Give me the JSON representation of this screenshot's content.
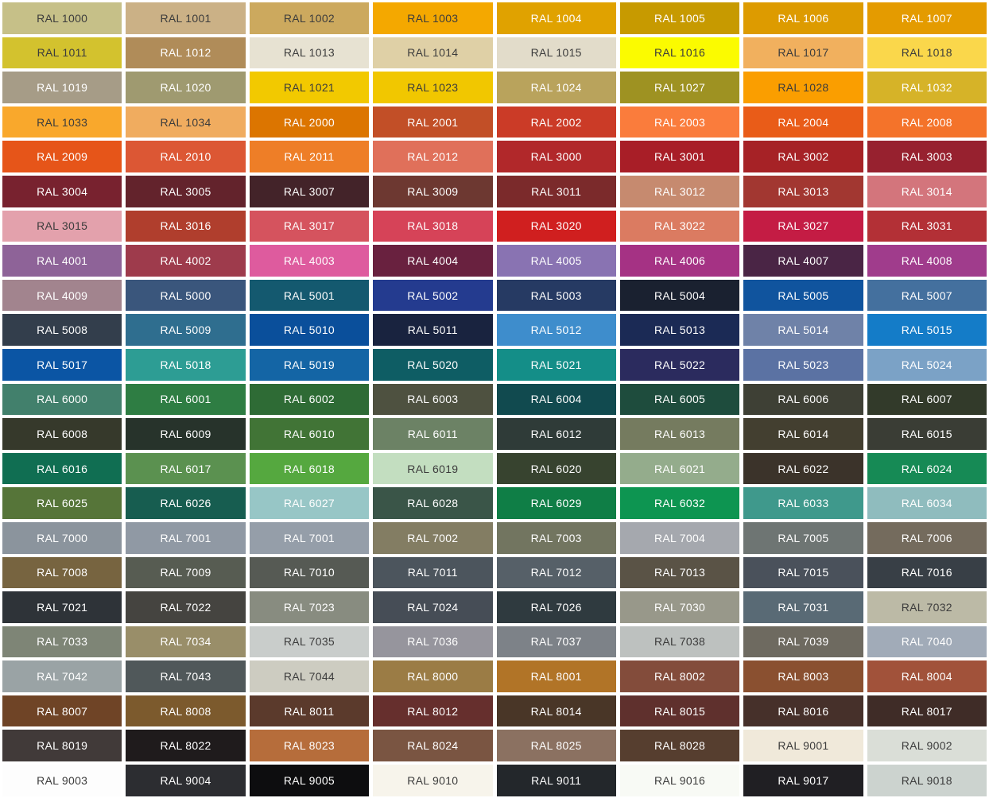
{
  "page": {
    "title": "RAL colour chart",
    "background": "#FFFFFF",
    "columns": 8,
    "rows": 23
  },
  "text_colors": {
    "dark": "#3C3C3C",
    "light": "#FFFFFF"
  },
  "chart_data": {
    "type": "table",
    "title": "RAL colour chart",
    "columns": 8,
    "legend": "each cell = [label, background_hex, text_tone(d=dark,l=light)]",
    "rows": [
      [
        [
          "RAL 1000",
          "#C6C088",
          "d"
        ],
        [
          "RAL 1001",
          "#CBB186",
          "d"
        ],
        [
          "RAL 1002",
          "#CCA95E",
          "d"
        ],
        [
          "RAL 1003",
          "#F4A800",
          "d"
        ],
        [
          "RAL 1004",
          "#E0A200",
          "l"
        ],
        [
          "RAL 1005",
          "#C79A00",
          "l"
        ],
        [
          "RAL 1006",
          "#DD9B00",
          "l"
        ],
        [
          "RAL 1007",
          "#E49B00",
          "l"
        ]
      ],
      [
        [
          "RAL 1011",
          "#D3C22E",
          "d"
        ],
        [
          "RAL 1012",
          "#B08C59",
          "l"
        ],
        [
          "RAL 1013",
          "#E7E2D2",
          "d"
        ],
        [
          "RAL 1014",
          "#DFD0A6",
          "d"
        ],
        [
          "RAL 1015",
          "#E2DCCA",
          "d"
        ],
        [
          "RAL 1016",
          "#FBFB00",
          "d"
        ],
        [
          "RAL 1017",
          "#F1B05E",
          "d"
        ],
        [
          "RAL 1018",
          "#FAD74B",
          "d"
        ]
      ],
      [
        [
          "RAL 1019",
          "#A69C87",
          "l"
        ],
        [
          "RAL 1020",
          "#9F9A70",
          "l"
        ],
        [
          "RAL 1021",
          "#F2C900",
          "d"
        ],
        [
          "RAL 1023",
          "#F1C700",
          "d"
        ],
        [
          "RAL 1024",
          "#B9A35C",
          "l"
        ],
        [
          "RAL 1027",
          "#9E9222",
          "l"
        ],
        [
          "RAL 1028",
          "#FA9E00",
          "d"
        ],
        [
          "RAL 1032",
          "#D6B328",
          "l"
        ]
      ],
      [
        [
          "RAL 1033",
          "#F9A82C",
          "d"
        ],
        [
          "RAL 1034",
          "#F0AC5F",
          "d"
        ],
        [
          "RAL 2000",
          "#DC7500",
          "l"
        ],
        [
          "RAL 2001",
          "#C24F27",
          "l"
        ],
        [
          "RAL 2002",
          "#CB3B27",
          "l"
        ],
        [
          "RAL 2003",
          "#FA7C3C",
          "l"
        ],
        [
          "RAL 2004",
          "#E95C18",
          "l"
        ],
        [
          "RAL 2008",
          "#F4732A",
          "l"
        ]
      ],
      [
        [
          "RAL 2009",
          "#E65519",
          "l"
        ],
        [
          "RAL 2010",
          "#DC5734",
          "l"
        ],
        [
          "RAL 2011",
          "#EE7E27",
          "l"
        ],
        [
          "RAL 2012",
          "#E0705A",
          "l"
        ],
        [
          "RAL 3000",
          "#B1282A",
          "l"
        ],
        [
          "RAL 3001",
          "#A81E27",
          "l"
        ],
        [
          "RAL 3002",
          "#A62226",
          "l"
        ],
        [
          "RAL 3003",
          "#97212F",
          "l"
        ]
      ],
      [
        [
          "RAL 3004",
          "#78222F",
          "l"
        ],
        [
          "RAL 3005",
          "#63232C",
          "l"
        ],
        [
          "RAL 3007",
          "#432329",
          "l"
        ],
        [
          "RAL 3009",
          "#6D3831",
          "l"
        ],
        [
          "RAL 3011",
          "#7B2A2B",
          "l"
        ],
        [
          "RAL 3012",
          "#C68A6F",
          "l"
        ],
        [
          "RAL 3013",
          "#A23731",
          "l"
        ],
        [
          "RAL 3014",
          "#D3757C",
          "l"
        ]
      ],
      [
        [
          "RAL 3015",
          "#E3A1AC",
          "d"
        ],
        [
          "RAL 3016",
          "#B03E2D",
          "l"
        ],
        [
          "RAL 3017",
          "#D5535E",
          "l"
        ],
        [
          "RAL 3018",
          "#D64358",
          "l"
        ],
        [
          "RAL 3020",
          "#D01F1F",
          "l"
        ],
        [
          "RAL 3022",
          "#DB7B61",
          "l"
        ],
        [
          "RAL 3027",
          "#C41C44",
          "l"
        ],
        [
          "RAL 3031",
          "#B33036",
          "l"
        ]
      ],
      [
        [
          "RAL 4001",
          "#8E6398",
          "l"
        ],
        [
          "RAL 4002",
          "#9E3B4C",
          "l"
        ],
        [
          "RAL 4003",
          "#DE5B9E",
          "l"
        ],
        [
          "RAL 4004",
          "#69213F",
          "l"
        ],
        [
          "RAL 4005",
          "#8973B2",
          "l"
        ],
        [
          "RAL 4006",
          "#A53284",
          "l"
        ],
        [
          "RAL 4007",
          "#4A2545",
          "l"
        ],
        [
          "RAL 4008",
          "#A03C8C",
          "l"
        ]
      ],
      [
        [
          "RAL 4009",
          "#A2848E",
          "l"
        ],
        [
          "RAL 5000",
          "#3A567C",
          "l"
        ],
        [
          "RAL 5001",
          "#14596F",
          "l"
        ],
        [
          "RAL 5002",
          "#243B8F",
          "l"
        ],
        [
          "RAL 5003",
          "#263A63",
          "l"
        ],
        [
          "RAL 5004",
          "#1A2130",
          "l"
        ],
        [
          "RAL 5005",
          "#10549E",
          "l"
        ],
        [
          "RAL 5007",
          "#44709E",
          "l"
        ]
      ],
      [
        [
          "RAL 5008",
          "#333E4C",
          "l"
        ],
        [
          "RAL 5009",
          "#2F6E8F",
          "l"
        ],
        [
          "RAL 5010",
          "#0A4F9B",
          "l"
        ],
        [
          "RAL 5011",
          "#19233F",
          "l"
        ],
        [
          "RAL 5012",
          "#3E8DCC",
          "l"
        ],
        [
          "RAL 5013",
          "#1B2A55",
          "l"
        ],
        [
          "RAL 5014",
          "#6F82A8",
          "l"
        ],
        [
          "RAL 5015",
          "#147CC8",
          "l"
        ]
      ],
      [
        [
          "RAL 5017",
          "#0B55A4",
          "l"
        ],
        [
          "RAL 5018",
          "#2D9D94",
          "l"
        ],
        [
          "RAL 5019",
          "#1465A5",
          "l"
        ],
        [
          "RAL 5020",
          "#0E5D64",
          "l"
        ],
        [
          "RAL 5021",
          "#148E88",
          "l"
        ],
        [
          "RAL 5022",
          "#2B2B5E",
          "l"
        ],
        [
          "RAL 5023",
          "#5B72A3",
          "l"
        ],
        [
          "RAL 5024",
          "#7BA2C6",
          "l"
        ]
      ],
      [
        [
          "RAL 6000",
          "#42806C",
          "l"
        ],
        [
          "RAL 6001",
          "#2E7D43",
          "l"
        ],
        [
          "RAL 6002",
          "#2E6B35",
          "l"
        ],
        [
          "RAL 6003",
          "#4E5140",
          "l"
        ],
        [
          "RAL 6004",
          "#114A4F",
          "l"
        ],
        [
          "RAL 6005",
          "#1E4C3D",
          "l"
        ],
        [
          "RAL 6006",
          "#3E4035",
          "l"
        ],
        [
          "RAL 6007",
          "#323A2A",
          "l"
        ]
      ],
      [
        [
          "RAL 6008",
          "#36392B",
          "l"
        ],
        [
          "RAL 6009",
          "#27332B",
          "l"
        ],
        [
          "RAL 6010",
          "#417436",
          "l"
        ],
        [
          "RAL 6011",
          "#6C8265",
          "l"
        ],
        [
          "RAL 6012",
          "#2F3B38",
          "l"
        ],
        [
          "RAL 6013",
          "#757B5F",
          "l"
        ],
        [
          "RAL 6014",
          "#433F30",
          "l"
        ],
        [
          "RAL 6015",
          "#3A3D35",
          "l"
        ]
      ],
      [
        [
          "RAL 6016",
          "#106E52",
          "l"
        ],
        [
          "RAL 6017",
          "#5B9150",
          "l"
        ],
        [
          "RAL 6018",
          "#55A83F",
          "l"
        ],
        [
          "RAL 6019",
          "#C3DEC0",
          "d"
        ],
        [
          "RAL 6020",
          "#37432F",
          "l"
        ],
        [
          "RAL 6021",
          "#94AC8C",
          "l"
        ],
        [
          "RAL 6022",
          "#3B332A",
          "l"
        ],
        [
          "RAL 6024",
          "#168A55",
          "l"
        ]
      ],
      [
        [
          "RAL 6025",
          "#567539",
          "l"
        ],
        [
          "RAL 6026",
          "#175D50",
          "l"
        ],
        [
          "RAL 6027",
          "#97C6C6",
          "l"
        ],
        [
          "RAL 6028",
          "#3A5548",
          "l"
        ],
        [
          "RAL 6029",
          "#0F7E46",
          "l"
        ],
        [
          "RAL 6032",
          "#0D9551",
          "l"
        ],
        [
          "RAL 6033",
          "#3F998C",
          "l"
        ],
        [
          "RAL 6034",
          "#8FBCBE",
          "l"
        ]
      ],
      [
        [
          "RAL 7000",
          "#8B949D",
          "l"
        ],
        [
          "RAL 7001",
          "#9099A4",
          "l"
        ],
        [
          "RAL 7001",
          "#959EA9",
          "l"
        ],
        [
          "RAL 7002",
          "#837D63",
          "l"
        ],
        [
          "RAL 7003",
          "#727560",
          "l"
        ],
        [
          "RAL 7004",
          "#A5A8AE",
          "l"
        ],
        [
          "RAL 7005",
          "#6E7573",
          "l"
        ],
        [
          "RAL 7006",
          "#746B5D",
          "l"
        ]
      ],
      [
        [
          "RAL 7008",
          "#776440",
          "l"
        ],
        [
          "RAL 7009",
          "#575C52",
          "l"
        ],
        [
          "RAL 7010",
          "#565A54",
          "l"
        ],
        [
          "RAL 7011",
          "#4C555D",
          "l"
        ],
        [
          "RAL 7012",
          "#566068",
          "l"
        ],
        [
          "RAL 7013",
          "#5A5346",
          "l"
        ],
        [
          "RAL 7015",
          "#4A515B",
          "l"
        ],
        [
          "RAL 7016",
          "#383F46",
          "l"
        ]
      ],
      [
        [
          "RAL 7021",
          "#2E3338",
          "l"
        ],
        [
          "RAL 7022",
          "#454440",
          "l"
        ],
        [
          "RAL 7023",
          "#888C80",
          "l"
        ],
        [
          "RAL 7024",
          "#464D56",
          "l"
        ],
        [
          "RAL 7026",
          "#2F3A3F",
          "l"
        ],
        [
          "RAL 7030",
          "#98988A",
          "l"
        ],
        [
          "RAL 7031",
          "#596A75",
          "l"
        ],
        [
          "RAL 7032",
          "#BCBAA6",
          "d"
        ]
      ],
      [
        [
          "RAL 7033",
          "#7E8576",
          "l"
        ],
        [
          "RAL 7034",
          "#998E69",
          "l"
        ],
        [
          "RAL 7035",
          "#C9CDCB",
          "d"
        ],
        [
          "RAL 7036",
          "#96959D",
          "l"
        ],
        [
          "RAL 7037",
          "#7D8288",
          "l"
        ],
        [
          "RAL 7038",
          "#BDC1BF",
          "d"
        ],
        [
          "RAL 7039",
          "#6E6A60",
          "l"
        ],
        [
          "RAL 7040",
          "#A1ABB8",
          "l"
        ]
      ],
      [
        [
          "RAL 7042",
          "#9AA3A5",
          "l"
        ],
        [
          "RAL 7043",
          "#50585A",
          "l"
        ],
        [
          "RAL 7044",
          "#CDCCC1",
          "d"
        ],
        [
          "RAL 8000",
          "#9B7C45",
          "l"
        ],
        [
          "RAL 8001",
          "#B17427",
          "l"
        ],
        [
          "RAL 8002",
          "#834C3B",
          "l"
        ],
        [
          "RAL 8003",
          "#8A5030",
          "l"
        ],
        [
          "RAL 8004",
          "#A1523A",
          "l"
        ]
      ],
      [
        [
          "RAL 8007",
          "#6F4426",
          "l"
        ],
        [
          "RAL 8008",
          "#7C5A2D",
          "l"
        ],
        [
          "RAL 8011",
          "#5B3A2C",
          "l"
        ],
        [
          "RAL 8012",
          "#662F2D",
          "l"
        ],
        [
          "RAL 8014",
          "#493627",
          "l"
        ],
        [
          "RAL 8015",
          "#5F302D",
          "l"
        ],
        [
          "RAL 8016",
          "#46302A",
          "l"
        ],
        [
          "RAL 8017",
          "#3F2C27",
          "l"
        ]
      ],
      [
        [
          "RAL 8019",
          "#413A39",
          "l"
        ],
        [
          "RAL 8022",
          "#1F1B1C",
          "l"
        ],
        [
          "RAL 8023",
          "#B66D3B",
          "l"
        ],
        [
          "RAL 8024",
          "#7A5542",
          "l"
        ],
        [
          "RAL 8025",
          "#8B7161",
          "l"
        ],
        [
          "RAL 8028",
          "#563E2F",
          "l"
        ],
        [
          "RAL 9001",
          "#F0E9DA",
          "d"
        ],
        [
          "RAL 9002",
          "#DADED7",
          "d"
        ]
      ],
      [
        [
          "RAL 9003",
          "#FDFDFD",
          "d"
        ],
        [
          "RAL 9004",
          "#2C2D31",
          "l"
        ],
        [
          "RAL 9005",
          "#0D0D0F",
          "l"
        ],
        [
          "RAL 9010",
          "#F7F4EB",
          "d"
        ],
        [
          "RAL 9011",
          "#23272B",
          "l"
        ],
        [
          "RAL 9016",
          "#F8FAF5",
          "d"
        ],
        [
          "RAL 9017",
          "#201F23",
          "l"
        ],
        [
          "RAL 9018",
          "#CCD3CF",
          "d"
        ]
      ]
    ]
  }
}
